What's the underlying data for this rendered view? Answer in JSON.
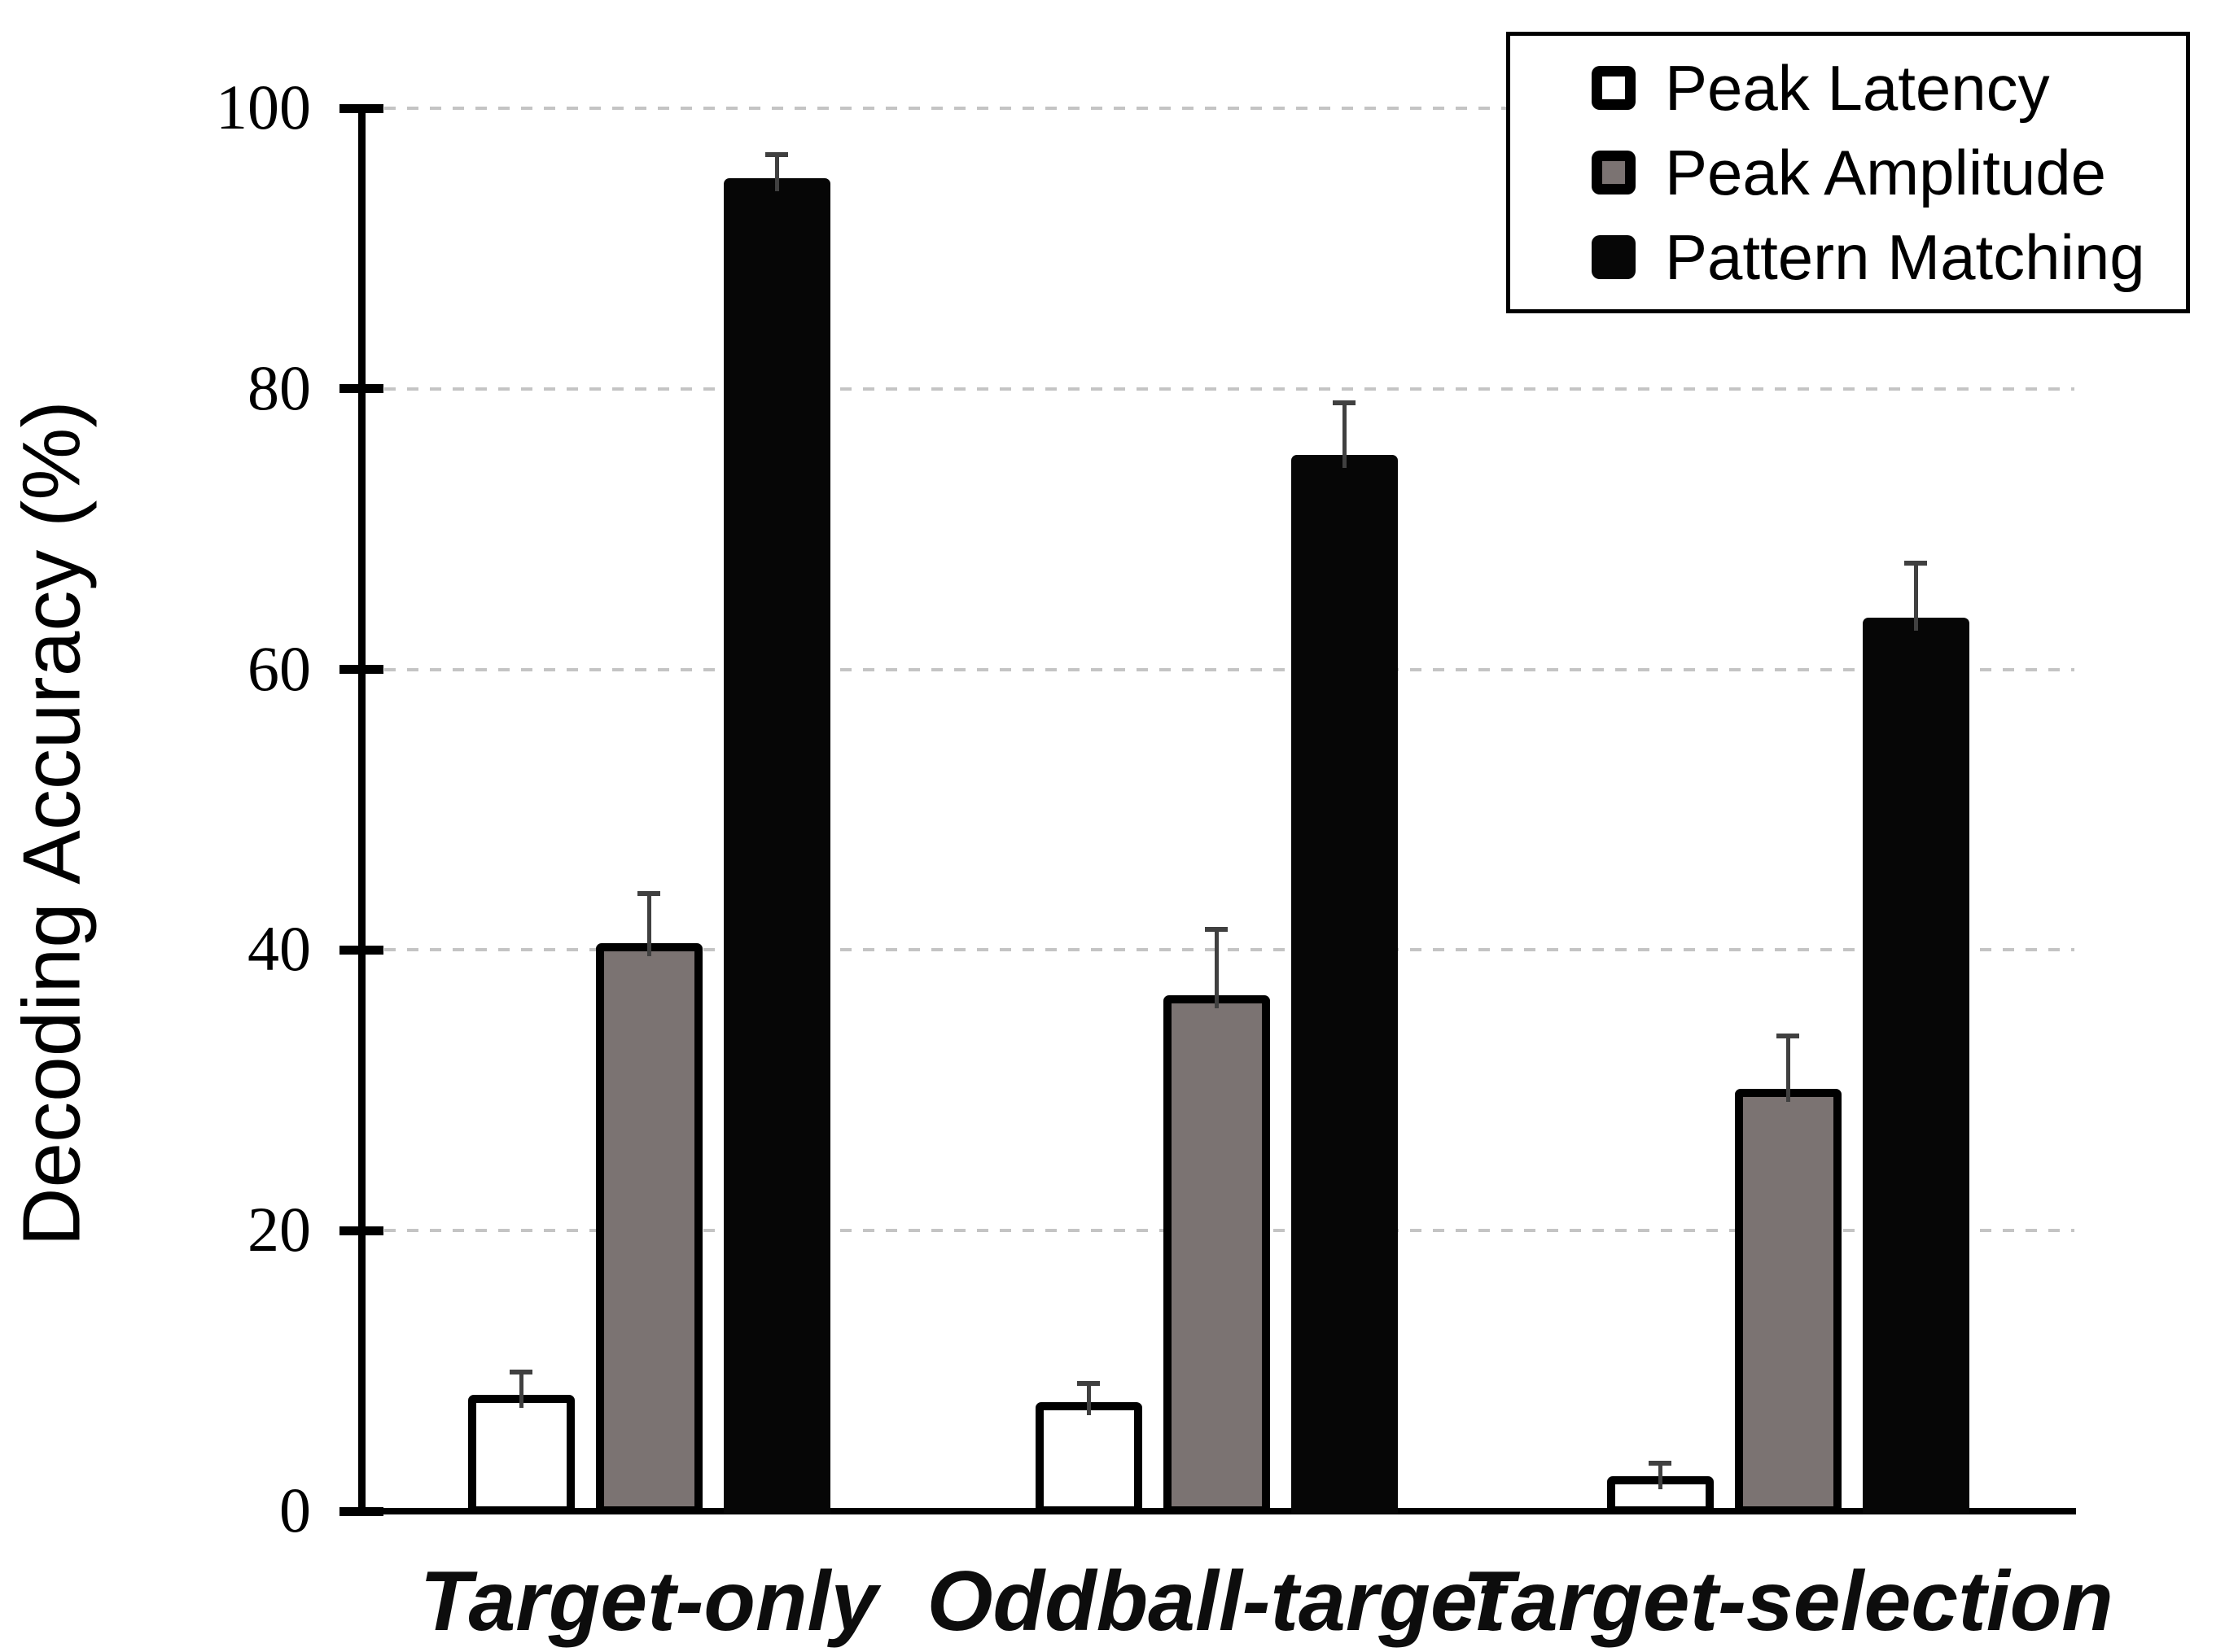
{
  "chart_data": {
    "type": "bar",
    "title": "",
    "xlabel": "",
    "ylabel": "Decoding Accuracy (%)",
    "ylim": [
      0,
      100
    ],
    "yticks": [
      0,
      20,
      40,
      60,
      80,
      100
    ],
    "grid": "horizontal dashed gridlines at 20/40/60/80/100",
    "legend_position": "top-right inside framed box",
    "categories": [
      "Target-only",
      "Oddball-target",
      "Target-selection"
    ],
    "series": [
      {
        "name": "Peak Latency",
        "color": "#ffffff",
        "outline": "#000000",
        "values": [
          8.3,
          7.8,
          2.5
        ],
        "errors_plus": [
          1.6,
          1.3,
          0.9
        ]
      },
      {
        "name": "Peak Amplitude",
        "color": "#7b7372",
        "outline": "#000000",
        "values": [
          40.5,
          36.8,
          30.1
        ],
        "errors_plus": [
          3.5,
          4.7,
          3.8
        ]
      },
      {
        "name": "Pattern Matching",
        "color": "#060606",
        "outline": null,
        "values": [
          95.0,
          75.3,
          63.7
        ],
        "errors_plus": [
          1.7,
          3.7,
          3.9
        ]
      }
    ],
    "colors": {
      "error_bar": "#404040",
      "gridline": "#c4c4c4",
      "axis": "#000000",
      "text": "#000000"
    }
  }
}
